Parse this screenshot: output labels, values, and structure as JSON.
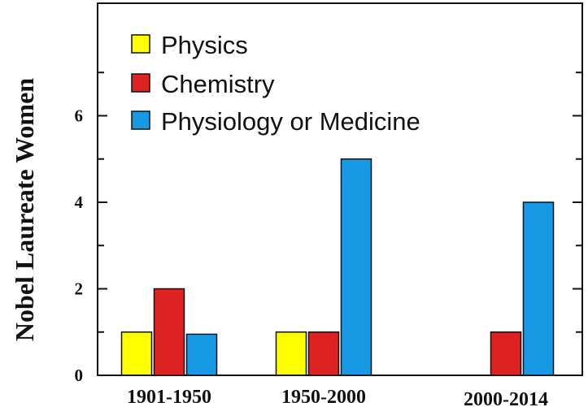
{
  "chart_data": {
    "type": "bar",
    "categories": [
      "1901-1950",
      "1950-2000",
      "2000-2014"
    ],
    "series": [
      {
        "name": "Physics",
        "values": [
          1,
          1,
          0
        ],
        "color": "#ffff00"
      },
      {
        "name": "Chemistry",
        "values": [
          2,
          1,
          1
        ],
        "color": "#dd2222"
      },
      {
        "name": "Physiology or Medicine",
        "values": [
          0.95,
          5,
          4
        ],
        "color": "#1899e4"
      }
    ],
    "ylabel": "Nobel Laureate Women",
    "ylim": [
      0,
      8.6
    ],
    "yticks": [
      0,
      2,
      4,
      6
    ],
    "legend_position": "top-left",
    "grid": false
  }
}
